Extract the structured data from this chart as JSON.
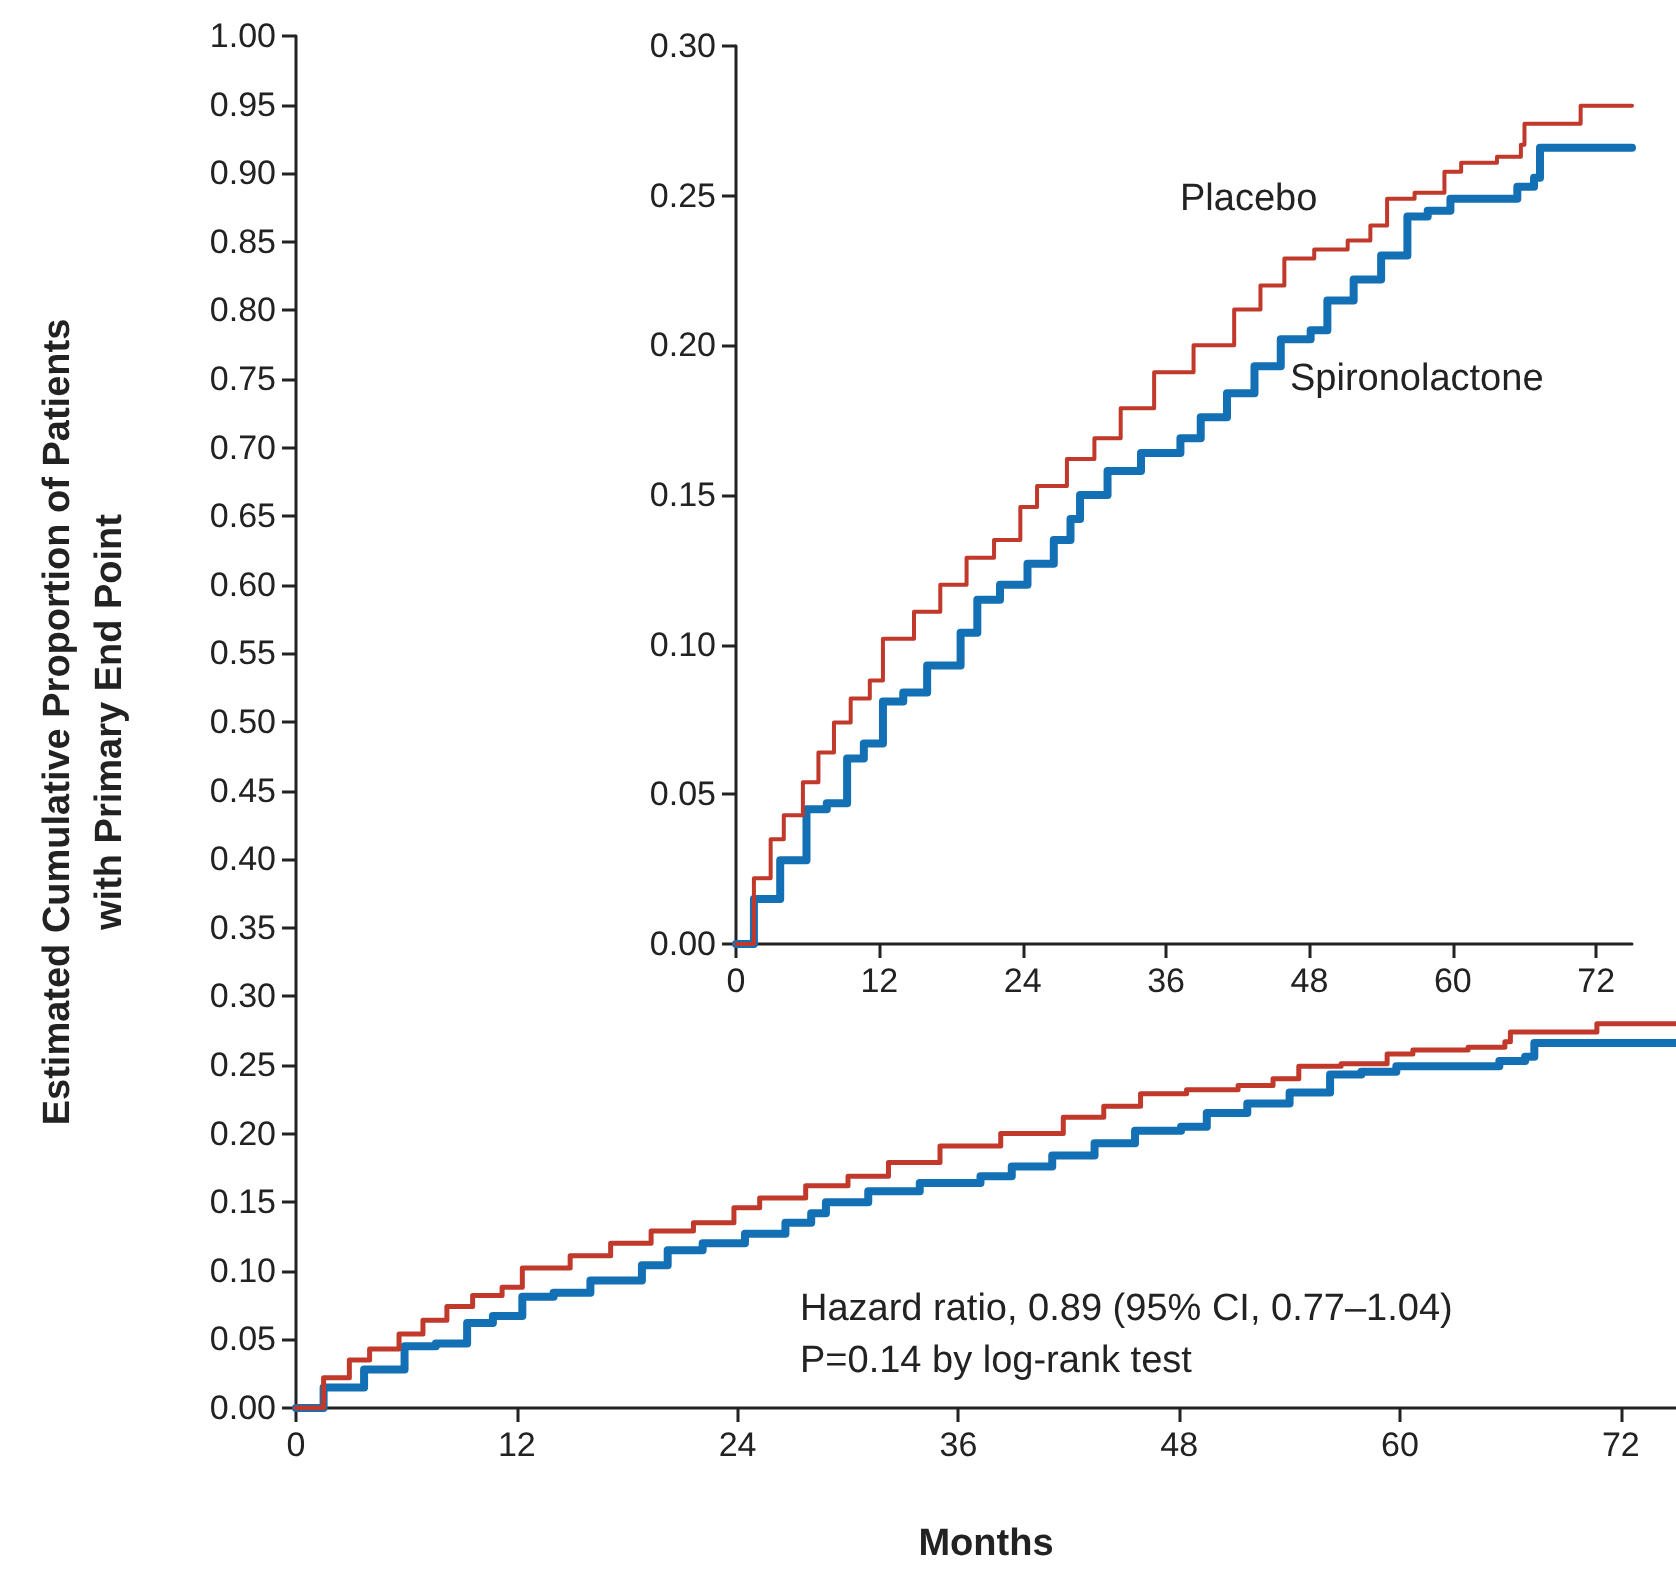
{
  "chart_data": [
    {
      "type": "step",
      "xlabel": "Months",
      "ylabel": "Estimated Cumulative Proportion of Patients\nwith Primary End Point",
      "annotations": [
        "Hazard ratio, 0.89 (95% CI, 0.77–1.04)",
        "P=0.14 by log-rank test"
      ],
      "xlim": [
        0,
        75
      ],
      "xticks": [
        0,
        12,
        24,
        36,
        48,
        60,
        72
      ],
      "ylim": [
        0,
        1
      ],
      "yticks": [
        {
          "value": 0,
          "label": "0.00"
        },
        {
          "value": 0.05,
          "label": "0.05"
        },
        {
          "value": 0.1,
          "label": "0.10"
        },
        {
          "value": 0.15,
          "label": "0.15"
        },
        {
          "value": 0.2,
          "label": "0.20"
        },
        {
          "value": 0.25,
          "label": "0.25"
        },
        {
          "value": 0.3,
          "label": "0.30"
        },
        {
          "value": 0.35,
          "label": "0.35"
        },
        {
          "value": 0.4,
          "label": "0.40"
        },
        {
          "value": 0.45,
          "label": "0.45"
        },
        {
          "value": 0.5,
          "label": "0.50"
        },
        {
          "value": 0.55,
          "label": "0.55"
        },
        {
          "value": 0.6,
          "label": "0.60"
        },
        {
          "value": 0.65,
          "label": "0.65"
        },
        {
          "value": 0.7,
          "label": "0.70"
        },
        {
          "value": 0.75,
          "label": "0.75"
        },
        {
          "value": 0.8,
          "label": "0.80"
        },
        {
          "value": 0.85,
          "label": "0.85"
        },
        {
          "value": 0.9,
          "label": "0.90"
        },
        {
          "value": 0.95,
          "label": "0.95"
        },
        {
          "value": 1,
          "label": "1.00"
        }
      ],
      "series": [
        {
          "color": "#c0392b",
          "x": [
            0,
            1.5,
            2.9,
            4.0,
            5.6,
            6.9,
            8.2,
            9.6,
            11.2,
            12.3,
            14.9,
            17.1,
            19.3,
            21.6,
            23.8,
            25.2,
            27.7,
            30.0,
            32.2,
            35.0,
            38.3,
            41.7,
            43.9,
            45.9,
            48.4,
            51.2,
            53.1,
            54.5,
            56.8,
            59.3,
            60.7,
            63.7,
            65.7,
            66.0,
            70.7,
            70.7,
            75.0
          ],
          "values": [
            0,
            0.022,
            0.035,
            0.043,
            0.054,
            0.064,
            0.074,
            0.082,
            0.088,
            0.102,
            0.111,
            0.12,
            0.129,
            0.135,
            0.146,
            0.153,
            0.162,
            0.169,
            0.179,
            0.191,
            0.2,
            0.212,
            0.22,
            0.229,
            0.232,
            0.235,
            0.24,
            0.249,
            0.251,
            0.258,
            0.261,
            0.263,
            0.267,
            0.274,
            0.274,
            0.28,
            0.28
          ]
        },
        {
          "color": "#1470b4",
          "x": [
            0,
            1.5,
            3.7,
            5.9,
            7.6,
            9.3,
            10.7,
            12.3,
            14.0,
            16.0,
            18.8,
            20.2,
            22.1,
            24.4,
            26.6,
            28.0,
            28.8,
            31.1,
            33.9,
            37.2,
            38.9,
            41.1,
            43.4,
            45.6,
            48.1,
            49.5,
            51.7,
            54.0,
            56.2,
            57.9,
            59.8,
            64.9,
            65.4,
            66.8,
            67.3,
            75.0
          ],
          "values": [
            0,
            0.015,
            0.028,
            0.045,
            0.047,
            0.062,
            0.067,
            0.081,
            0.084,
            0.093,
            0.104,
            0.115,
            0.12,
            0.127,
            0.135,
            0.142,
            0.15,
            0.158,
            0.164,
            0.169,
            0.176,
            0.184,
            0.193,
            0.202,
            0.205,
            0.215,
            0.222,
            0.23,
            0.243,
            0.245,
            0.249,
            0.249,
            0.253,
            0.256,
            0.266,
            0.266
          ]
        }
      ]
    },
    {
      "type": "step",
      "xlim": [
        0,
        75
      ],
      "xticks": [
        0,
        12,
        24,
        36,
        48,
        60,
        72
      ],
      "ylim": [
        0,
        0.3
      ],
      "yticks": [
        {
          "value": 0,
          "label": "0.00"
        },
        {
          "value": 0.05,
          "label": "0.05"
        },
        {
          "value": 0.1,
          "label": "0.10"
        },
        {
          "value": 0.15,
          "label": "0.15"
        },
        {
          "value": 0.2,
          "label": "0.20"
        },
        {
          "value": 0.25,
          "label": "0.25"
        },
        {
          "value": 0.3,
          "label": "0.30"
        }
      ],
      "series": [
        {
          "name": "Placebo",
          "color": "#c0392b",
          "x": [
            0,
            1.5,
            2.9,
            4.0,
            5.6,
            6.9,
            8.2,
            9.6,
            11.2,
            12.3,
            14.9,
            17.1,
            19.3,
            21.6,
            23.8,
            25.2,
            27.7,
            30.0,
            32.2,
            35.0,
            38.3,
            41.7,
            43.9,
            45.9,
            48.4,
            51.2,
            53.1,
            54.5,
            56.8,
            59.3,
            60.7,
            63.7,
            65.7,
            66.0,
            70.7,
            70.7,
            75.0
          ],
          "values": [
            0,
            0.022,
            0.035,
            0.043,
            0.054,
            0.064,
            0.074,
            0.082,
            0.088,
            0.102,
            0.111,
            0.12,
            0.129,
            0.135,
            0.146,
            0.153,
            0.162,
            0.169,
            0.179,
            0.191,
            0.2,
            0.212,
            0.22,
            0.229,
            0.232,
            0.235,
            0.24,
            0.249,
            0.251,
            0.258,
            0.261,
            0.263,
            0.267,
            0.274,
            0.274,
            0.28,
            0.28
          ]
        },
        {
          "name": "Spironolactone",
          "color": "#1470b4",
          "x": [
            0,
            1.5,
            3.7,
            5.9,
            7.6,
            9.3,
            10.7,
            12.3,
            14.0,
            16.0,
            18.8,
            20.2,
            22.1,
            24.4,
            26.6,
            28.0,
            28.8,
            31.1,
            33.9,
            37.2,
            38.9,
            41.1,
            43.4,
            45.6,
            48.1,
            49.5,
            51.7,
            54.0,
            56.2,
            57.9,
            59.8,
            64.9,
            65.4,
            66.8,
            67.3,
            75.0
          ],
          "values": [
            0,
            0.015,
            0.028,
            0.045,
            0.047,
            0.062,
            0.067,
            0.081,
            0.084,
            0.093,
            0.104,
            0.115,
            0.12,
            0.127,
            0.135,
            0.142,
            0.15,
            0.158,
            0.164,
            0.169,
            0.176,
            0.184,
            0.193,
            0.202,
            0.205,
            0.215,
            0.222,
            0.23,
            0.243,
            0.245,
            0.249,
            0.249,
            0.253,
            0.256,
            0.266,
            0.266
          ]
        }
      ]
    }
  ]
}
